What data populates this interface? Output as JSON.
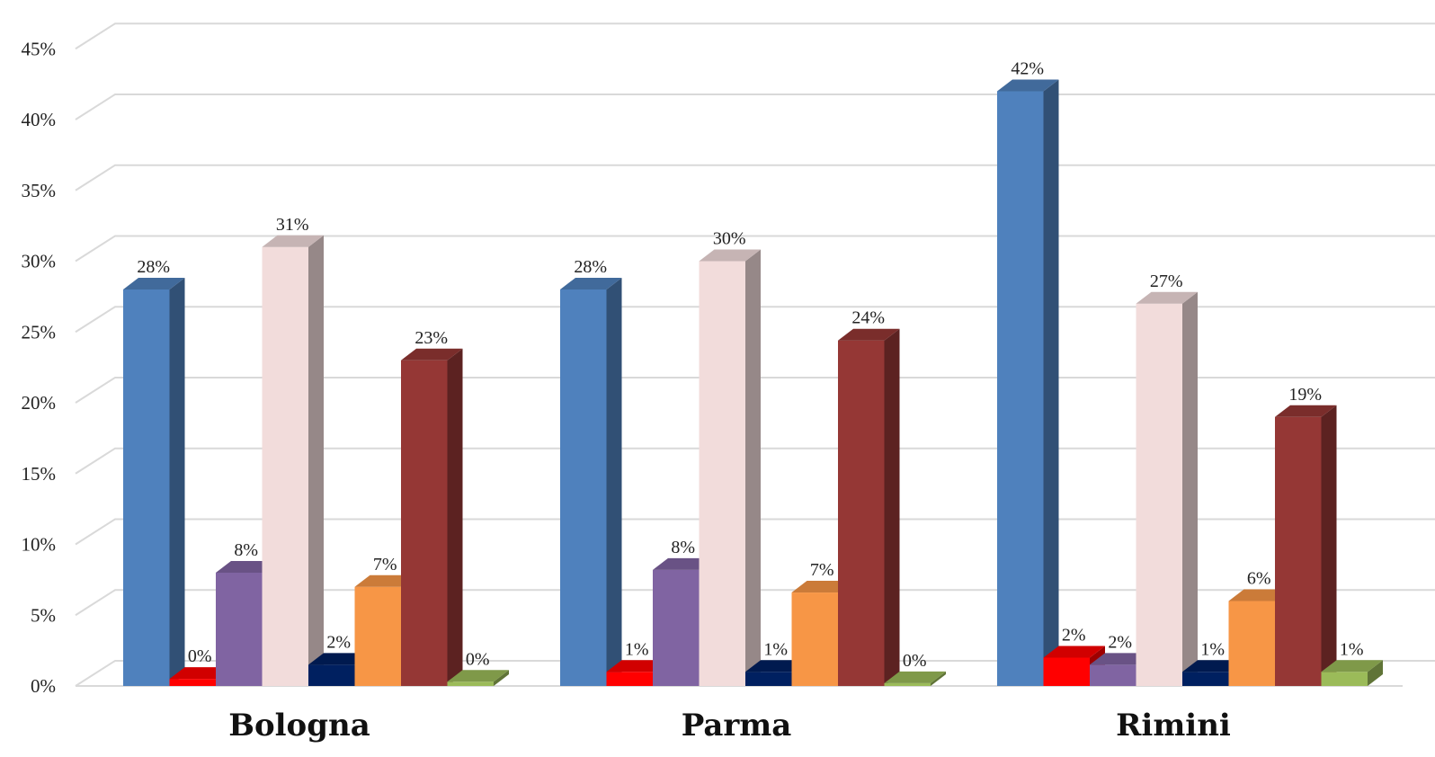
{
  "chart_data": {
    "type": "bar",
    "categories": [
      "Bologna",
      "Parma",
      "Rimini"
    ],
    "series": [
      {
        "values": [
          28,
          28,
          42
        ],
        "labels": [
          "28%",
          "28%",
          "42%"
        ],
        "color": "#4f81bd"
      },
      {
        "values": [
          0.5,
          1,
          2
        ],
        "labels": [
          "0%",
          "1%",
          "2%"
        ],
        "color": "#ff0000"
      },
      {
        "values": [
          8,
          8.2,
          1.5
        ],
        "labels": [
          "8%",
          "8%",
          "2%"
        ],
        "color": "#8064a2"
      },
      {
        "values": [
          31,
          30,
          27
        ],
        "labels": [
          "31%",
          "30%",
          "27%"
        ],
        "color": "#f2dcdb"
      },
      {
        "values": [
          1.5,
          1,
          1
        ],
        "labels": [
          "2%",
          "1%",
          "1%"
        ],
        "color": "#002060"
      },
      {
        "values": [
          7,
          6.6,
          6
        ],
        "labels": [
          "7%",
          "7%",
          "6%"
        ],
        "color": "#f79646"
      },
      {
        "values": [
          23,
          24.4,
          19
        ],
        "labels": [
          "23%",
          "24%",
          "19%"
        ],
        "color": "#953735"
      },
      {
        "values": [
          0.3,
          0.2,
          1
        ],
        "labels": [
          "0%",
          "0%",
          "1%"
        ],
        "color": "#9bbb59"
      }
    ],
    "ylim": [
      0,
      45
    ],
    "yticks": [
      "0%",
      "5%",
      "10%",
      "15%",
      "20%",
      "25%",
      "30%",
      "35%",
      "40%",
      "45%"
    ],
    "grid": true,
    "legend": "none"
  }
}
